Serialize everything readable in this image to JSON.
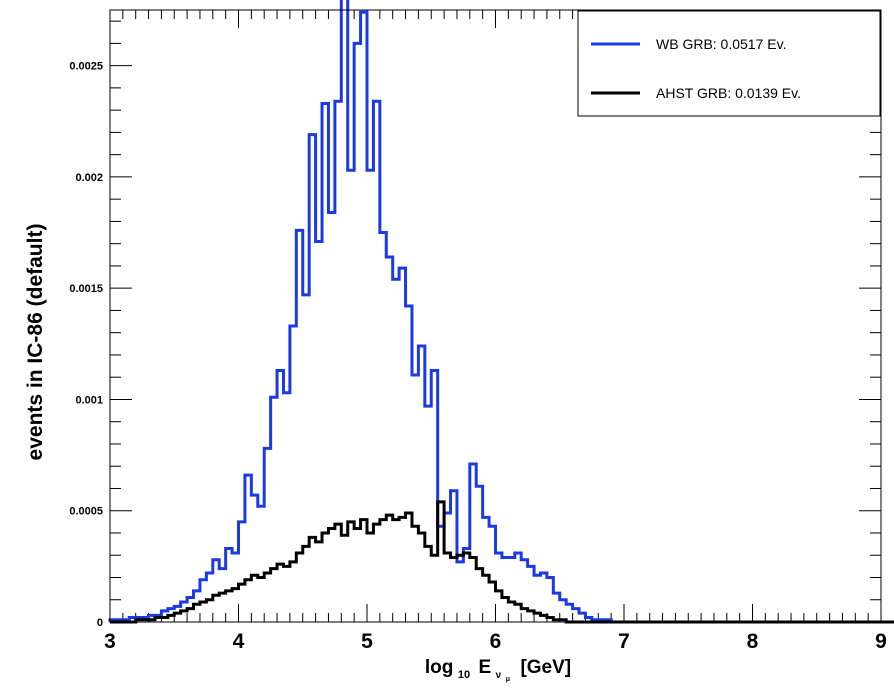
{
  "chart_data": {
    "type": "line",
    "xlabel_parts": {
      "base": "log",
      "sub": "10",
      "var": "E",
      "var_sub": "ν",
      "var_subsub": "μ",
      "unit": "[GeV]"
    },
    "ylabel": "events in IC-86 (default)",
    "xlim": [
      3,
      9
    ],
    "ylim": [
      0,
      0.00275
    ],
    "x_ticks": [
      "3",
      "4",
      "5",
      "6",
      "7",
      "8",
      "9"
    ],
    "y_ticks": [
      {
        "value": 0,
        "label": "0"
      },
      {
        "value": 0.0005,
        "label": "0.0005"
      },
      {
        "value": 0.001,
        "label": "0.001"
      },
      {
        "value": 0.0015,
        "label": "0.0015"
      },
      {
        "value": 0.002,
        "label": "0.002"
      },
      {
        "value": 0.0025,
        "label": "0.0025"
      }
    ],
    "bin_start": 3.0,
    "bin_width": 0.05,
    "legend_position": "top-right",
    "series": [
      {
        "name": "WB GRB: 0.0517 Ev.",
        "color": "#1a3ae6",
        "values": [
          1e-05,
          1e-05,
          1e-05,
          2e-05,
          2e-05,
          2e-05,
          3e-05,
          3e-05,
          5e-05,
          6e-05,
          7e-05,
          9e-05,
          0.00011,
          0.00014,
          0.00019,
          0.00022,
          0.00028,
          0.00024,
          0.00033,
          0.00031,
          0.00045,
          0.00066,
          0.00057,
          0.00052,
          0.00078,
          0.00101,
          0.00113,
          0.00103,
          0.00133,
          0.00176,
          0.00147,
          0.00219,
          0.00171,
          0.00233,
          0.00184,
          0.00234,
          0.00282,
          0.00203,
          0.0026,
          0.00274,
          0.00203,
          0.00234,
          0.00175,
          0.00164,
          0.00154,
          0.00159,
          0.00142,
          0.00111,
          0.00124,
          0.00097,
          0.00113,
          0.00043,
          0.00049,
          0.00059,
          0.00027,
          0.00033,
          0.00071,
          0.00061,
          0.00047,
          0.00043,
          0.00031,
          0.00029,
          0.00029,
          0.00031,
          0.00028,
          0.00025,
          0.00021,
          0.00022,
          0.0002,
          0.00013,
          0.0001,
          8e-05,
          6e-05,
          4e-05,
          2e-05,
          1e-05,
          1e-05,
          1e-05,
          0,
          0,
          0,
          0,
          0,
          0,
          0,
          0,
          0,
          0,
          0,
          0,
          0,
          0,
          0,
          0,
          0,
          0,
          0,
          0,
          0,
          0,
          0,
          0,
          0,
          0,
          0,
          0,
          0,
          0,
          0,
          0,
          0,
          0,
          0,
          0,
          0,
          0,
          0,
          0,
          0,
          0
        ]
      },
      {
        "name": "AHST GRB: 0.0139 Ev.",
        "color": "#000000",
        "values": [
          0,
          0,
          0,
          0,
          1e-05,
          1e-05,
          1e-05,
          2e-05,
          2e-05,
          3e-05,
          4e-05,
          5e-05,
          6e-05,
          8e-05,
          9e-05,
          0.0001,
          0.00012,
          0.00013,
          0.00014,
          0.00015,
          0.00017,
          0.00019,
          0.00021,
          0.0002,
          0.00022,
          0.00024,
          0.00026,
          0.00025,
          0.00027,
          0.00031,
          0.00034,
          0.00038,
          0.00036,
          0.0004,
          0.00042,
          0.00044,
          0.00039,
          0.00045,
          0.00042,
          0.00046,
          0.0004,
          0.00044,
          0.00046,
          0.00048,
          0.00046,
          0.00047,
          0.00049,
          0.00043,
          0.0004,
          0.00034,
          0.0003,
          0.00054,
          0.00031,
          0.00029,
          0.0003,
          0.00031,
          0.00029,
          0.00024,
          0.00021,
          0.00018,
          0.00014,
          0.00011,
          9e-05,
          8e-05,
          6e-05,
          5e-05,
          4e-05,
          3e-05,
          2e-05,
          1e-05,
          1e-05,
          0,
          0,
          0,
          0,
          0,
          0,
          0,
          0,
          0,
          0,
          0,
          0,
          0,
          0,
          0,
          0,
          0,
          0,
          0,
          0,
          0,
          0,
          0,
          0,
          0,
          0,
          0,
          0,
          0,
          0,
          0,
          0,
          0,
          0,
          0,
          0,
          0,
          0,
          0,
          0,
          0,
          0,
          0,
          0,
          0,
          0,
          0,
          0,
          0,
          0,
          0,
          0,
          0,
          0,
          0,
          0,
          0,
          0,
          0
        ]
      }
    ]
  }
}
